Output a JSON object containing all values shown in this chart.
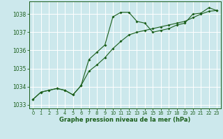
{
  "title": "Graphe pression niveau de la mer (hPa)",
  "bg_color": "#cce8ec",
  "grid_color": "#ffffff",
  "line_color": "#1a5e1a",
  "x_min": -0.5,
  "x_max": 23.5,
  "y_min": 1032.8,
  "y_max": 1038.7,
  "y_ticks": [
    1033,
    1034,
    1035,
    1036,
    1037,
    1038
  ],
  "x_ticks": [
    0,
    1,
    2,
    3,
    4,
    5,
    6,
    7,
    8,
    9,
    10,
    11,
    12,
    13,
    14,
    15,
    16,
    17,
    18,
    19,
    20,
    21,
    22,
    23
  ],
  "series1_x": [
    0,
    1,
    2,
    3,
    4,
    5,
    6,
    7,
    8,
    9,
    10,
    11,
    12,
    13,
    14,
    15,
    16,
    17,
    18,
    19,
    20,
    21,
    22,
    23
  ],
  "series1_y": [
    1033.3,
    1033.7,
    1033.8,
    1033.9,
    1033.8,
    1033.55,
    1034.05,
    1035.5,
    1035.9,
    1036.3,
    1037.85,
    1038.1,
    1038.1,
    1037.6,
    1037.5,
    1037.0,
    1037.1,
    1037.2,
    1037.4,
    1037.5,
    1038.0,
    1038.05,
    1038.35,
    1038.2
  ],
  "series2_x": [
    0,
    1,
    2,
    3,
    4,
    5,
    6,
    7,
    8,
    9,
    10,
    11,
    12,
    13,
    14,
    15,
    16,
    17,
    18,
    19,
    20,
    21,
    22,
    23
  ],
  "series2_y": [
    1033.3,
    1033.7,
    1033.8,
    1033.9,
    1033.8,
    1033.55,
    1034.05,
    1034.85,
    1035.2,
    1035.6,
    1036.1,
    1036.5,
    1036.85,
    1037.0,
    1037.1,
    1037.2,
    1037.3,
    1037.4,
    1037.5,
    1037.6,
    1037.8,
    1038.0,
    1038.15,
    1038.2
  ]
}
